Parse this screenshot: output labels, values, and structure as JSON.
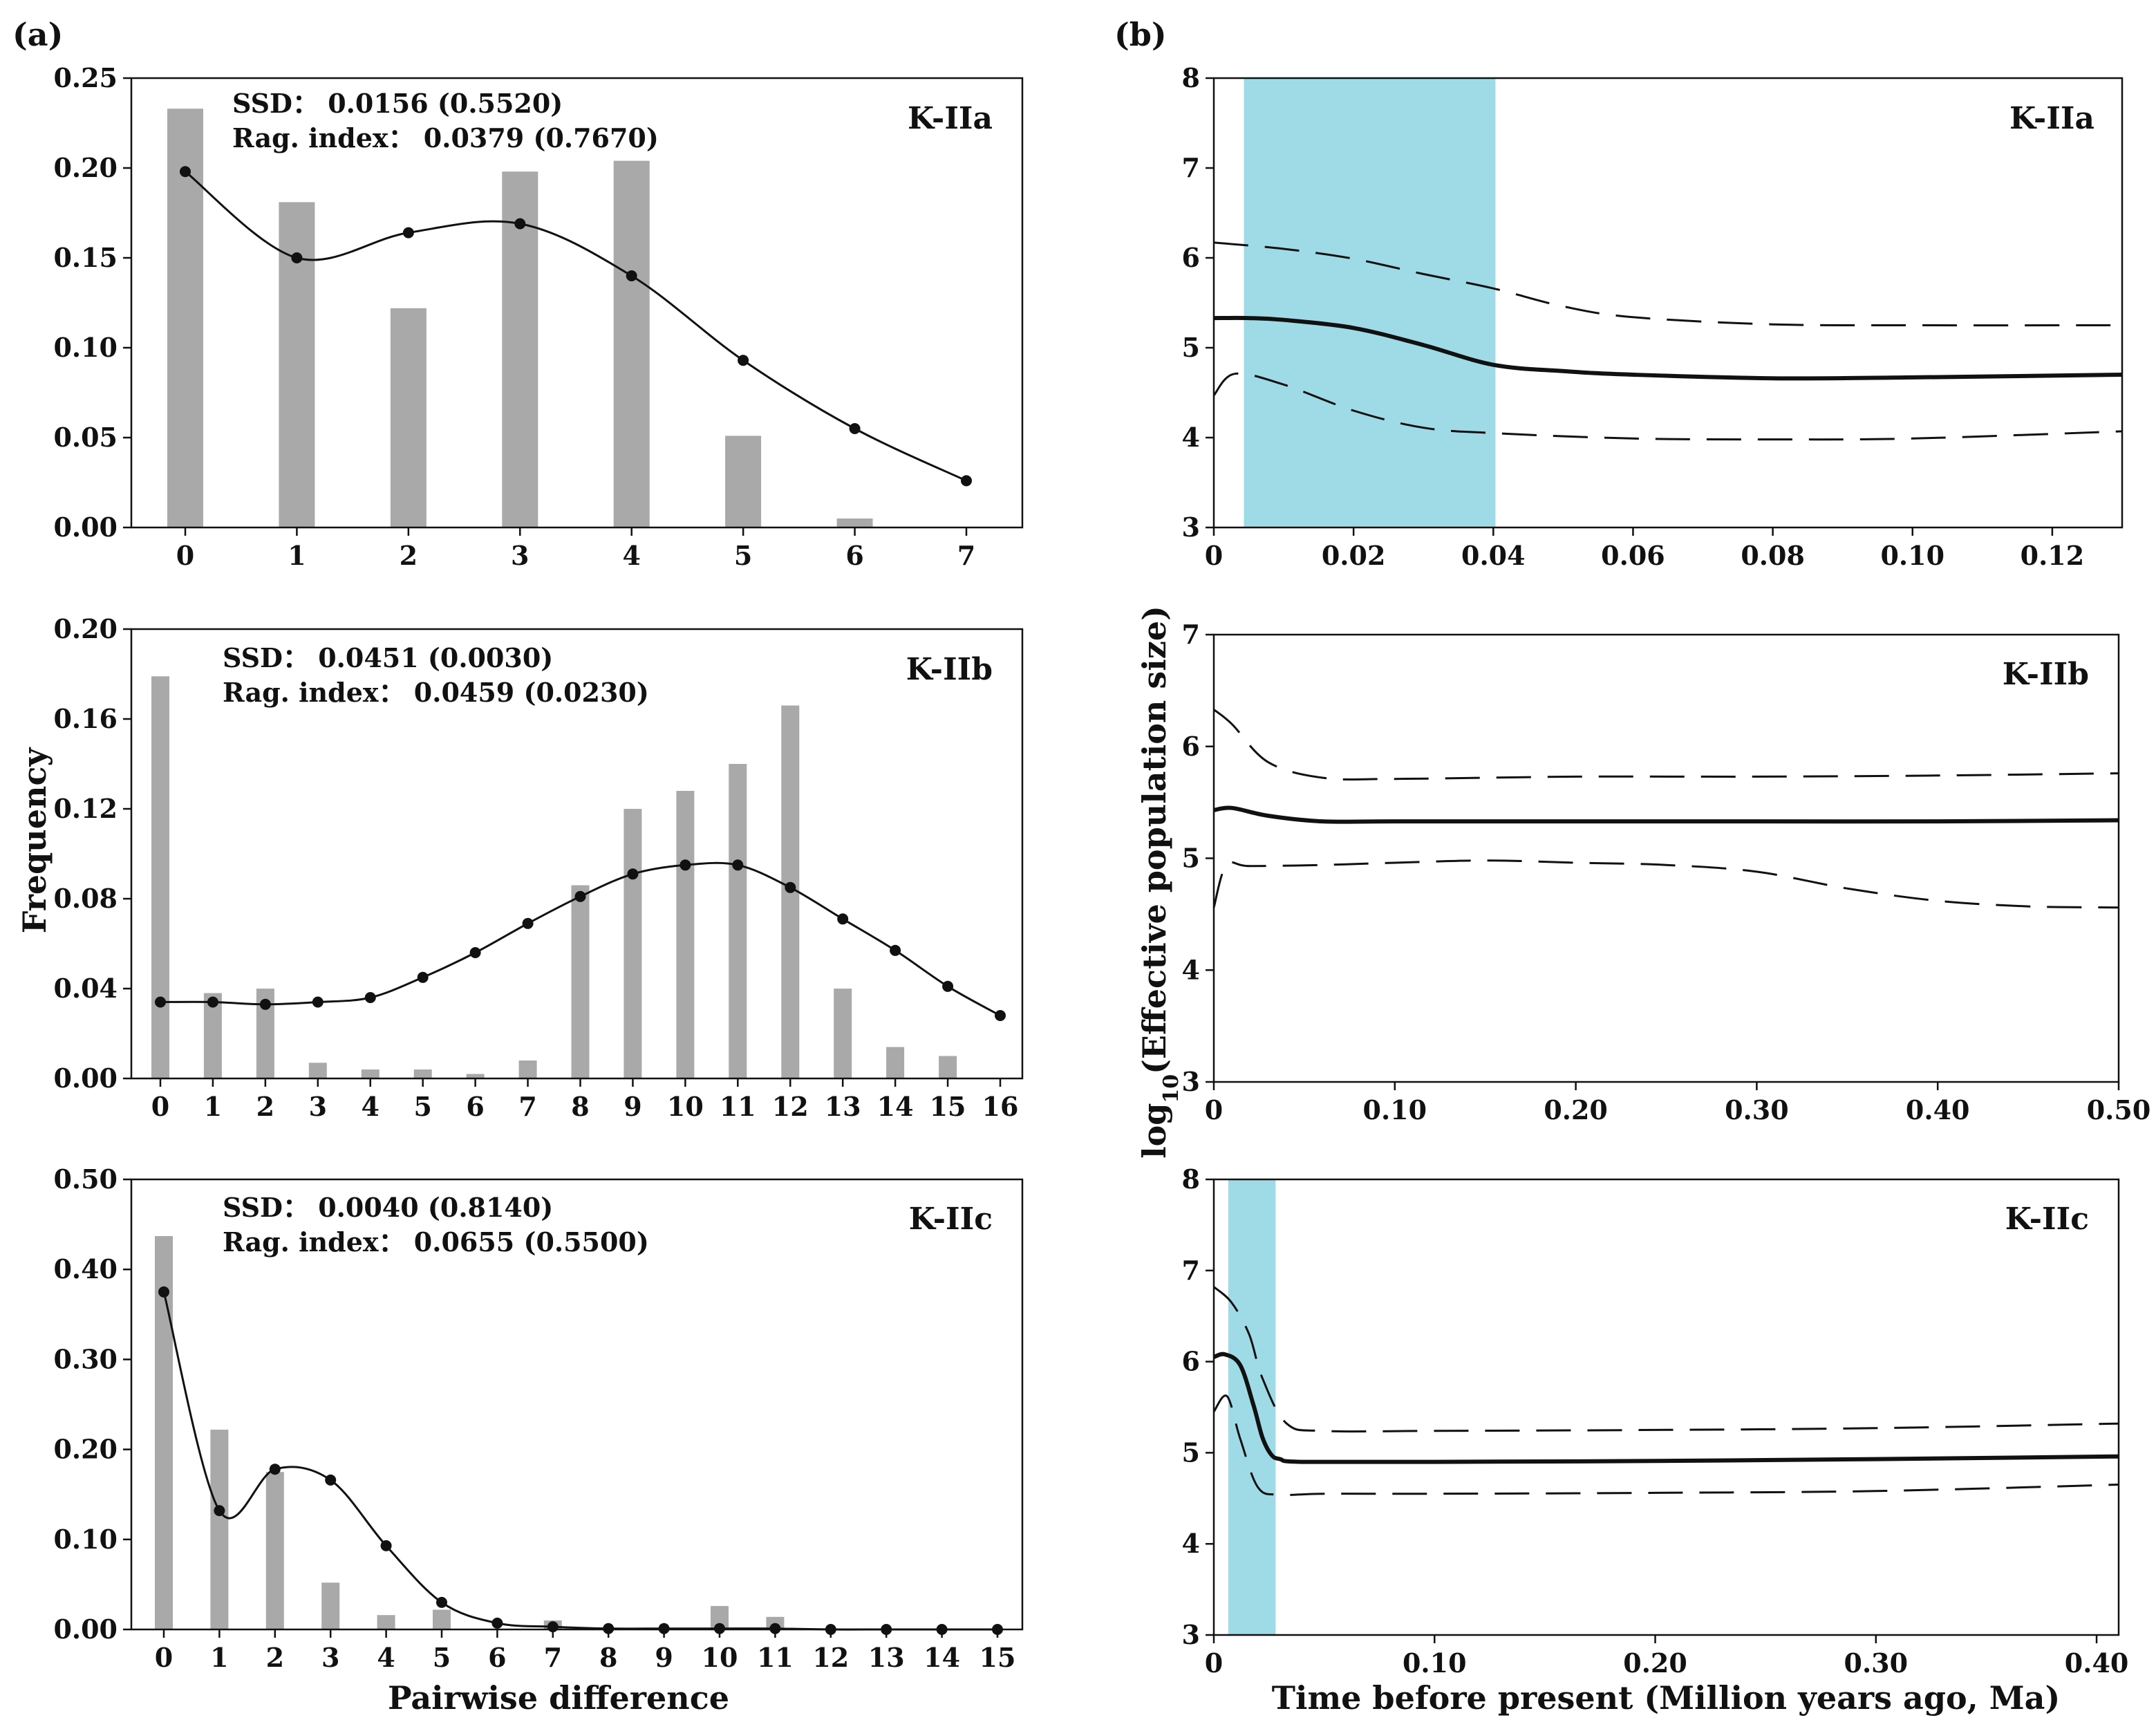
{
  "panel_labels": {
    "a": "(a)",
    "b": "(b)"
  },
  "axis_titles": {
    "mismatch_y": "Frequency",
    "mismatch_x": "Pairwise difference",
    "bsp_y_prefix": "log",
    "bsp_y_sub": "10",
    "bsp_y_suffix": "(Effective population size)",
    "bsp_x": "Time before present (Million years ago, Ma)"
  },
  "colors": {
    "bar": "#a9a9a9",
    "shade": "#9fdae7",
    "line": "#111111"
  },
  "chart_data": [
    {
      "id": "mismatch-K-IIa",
      "type": "bar+line",
      "title": "K-IIa",
      "stat_ssd": "SSD： 0.0156 (0.5520)",
      "stat_rag": "Rag. index： 0.0379 (0.7670)",
      "categories": [
        0,
        1,
        2,
        3,
        4,
        5,
        6,
        7
      ],
      "observed": [
        0.233,
        0.181,
        0.122,
        0.198,
        0.204,
        0.051,
        0.005,
        0
      ],
      "expected": [
        0.198,
        0.15,
        0.164,
        0.169,
        0.14,
        0.093,
        0.055,
        0.026
      ],
      "ylim": [
        0,
        0.25
      ],
      "yticks": [
        0,
        0.05,
        0.1,
        0.15,
        0.2,
        0.25
      ],
      "yticklabels": [
        "0.00",
        "0.05",
        "0.10",
        "0.15",
        "0.20",
        "0.25"
      ]
    },
    {
      "id": "mismatch-K-IIb",
      "type": "bar+line",
      "title": "K-IIb",
      "stat_ssd": "SSD： 0.0451 (0.0030)",
      "stat_rag": "Rag. index： 0.0459 (0.0230)",
      "categories": [
        0,
        1,
        2,
        3,
        4,
        5,
        6,
        7,
        8,
        9,
        10,
        11,
        12,
        13,
        14,
        15,
        16
      ],
      "observed": [
        0.179,
        0.038,
        0.04,
        0.007,
        0.004,
        0.004,
        0.002,
        0.008,
        0.086,
        0.12,
        0.128,
        0.14,
        0.166,
        0.04,
        0.014,
        0.01,
        0
      ],
      "expected": [
        0.034,
        0.034,
        0.033,
        0.034,
        0.036,
        0.045,
        0.056,
        0.069,
        0.081,
        0.091,
        0.095,
        0.095,
        0.085,
        0.071,
        0.057,
        0.041,
        0.028
      ],
      "ylim": [
        0,
        0.2
      ],
      "yticks": [
        0,
        0.04,
        0.08,
        0.12,
        0.16,
        0.2
      ],
      "yticklabels": [
        "0.00",
        "0.04",
        "0.08",
        "0.12",
        "0.16",
        "0.20"
      ]
    },
    {
      "id": "mismatch-K-IIc",
      "type": "bar+line",
      "title": "K-IIc",
      "stat_ssd": "SSD： 0.0040 (0.8140)",
      "stat_rag": "Rag. index： 0.0655 (0.5500)",
      "categories": [
        0,
        1,
        2,
        3,
        4,
        5,
        6,
        7,
        8,
        9,
        10,
        11,
        12,
        13,
        14,
        15
      ],
      "observed": [
        0.437,
        0.222,
        0.175,
        0.052,
        0.016,
        0.022,
        0,
        0.01,
        0,
        0,
        0.026,
        0.014,
        0,
        0,
        0,
        0
      ],
      "expected": [
        0.375,
        0.132,
        0.178,
        0.166,
        0.093,
        0.03,
        0.007,
        0.003,
        0.001,
        0.001,
        0.001,
        0.001,
        0,
        0,
        0,
        0
      ],
      "ylim": [
        0,
        0.5
      ],
      "yticks": [
        0,
        0.1,
        0.2,
        0.3,
        0.4,
        0.5
      ],
      "yticklabels": [
        "0.00",
        "0.10",
        "0.20",
        "0.30",
        "0.40",
        "0.50"
      ]
    },
    {
      "id": "bsp-K-IIa",
      "type": "line",
      "title": "K-IIa",
      "xlim": [
        0,
        0.13
      ],
      "ylim": [
        3,
        8
      ],
      "xticks": [
        0,
        0.02,
        0.04,
        0.06,
        0.08,
        0.1,
        0.12
      ],
      "xticklabels": [
        "0",
        "0.02",
        "0.04",
        "0.06",
        "0.08",
        "0.10",
        "0.12"
      ],
      "yticks": [
        3,
        4,
        5,
        6,
        7,
        8
      ],
      "yticklabels": [
        "3",
        "4",
        "5",
        "6",
        "7",
        "8"
      ],
      "shade": [
        0.0043,
        0.0403
      ],
      "median": {
        "x": [
          0,
          0.005,
          0.01,
          0.02,
          0.03,
          0.04,
          0.05,
          0.06,
          0.08,
          0.1,
          0.13
        ],
        "y": [
          5.33,
          5.33,
          5.31,
          5.22,
          5.03,
          4.81,
          4.74,
          4.7,
          4.66,
          4.67,
          4.7
        ]
      },
      "upper": {
        "x": [
          0,
          0.01,
          0.02,
          0.03,
          0.04,
          0.05,
          0.06,
          0.08,
          0.1,
          0.13
        ],
        "y": [
          6.17,
          6.1,
          5.99,
          5.82,
          5.66,
          5.46,
          5.34,
          5.26,
          5.25,
          5.25
        ]
      },
      "lower": {
        "x": [
          0,
          0.003,
          0.01,
          0.02,
          0.03,
          0.04,
          0.06,
          0.08,
          0.1,
          0.13
        ],
        "y": [
          4.47,
          4.71,
          4.59,
          4.3,
          4.11,
          4.05,
          3.99,
          3.98,
          3.99,
          4.07
        ]
      }
    },
    {
      "id": "bsp-K-IIb",
      "type": "line",
      "title": "K-IIb",
      "xlim": [
        0,
        0.5
      ],
      "ylim": [
        3,
        7
      ],
      "xticks": [
        0,
        0.1,
        0.2,
        0.3,
        0.4,
        0.5
      ],
      "xticklabels": [
        "0",
        "0.10",
        "0.20",
        "0.30",
        "0.40",
        "0.50"
      ],
      "yticks": [
        3,
        4,
        5,
        6,
        7
      ],
      "yticklabels": [
        "3",
        "4",
        "5",
        "6",
        "7"
      ],
      "shade": null,
      "median": {
        "x": [
          0,
          0.01,
          0.03,
          0.06,
          0.1,
          0.2,
          0.3,
          0.4,
          0.5
        ],
        "y": [
          5.43,
          5.45,
          5.38,
          5.33,
          5.33,
          5.33,
          5.33,
          5.33,
          5.34
        ]
      },
      "upper": {
        "x": [
          0,
          0.01,
          0.03,
          0.06,
          0.1,
          0.2,
          0.3,
          0.4,
          0.5
        ],
        "y": [
          6.33,
          6.2,
          5.86,
          5.72,
          5.71,
          5.73,
          5.73,
          5.74,
          5.76
        ]
      },
      "lower": {
        "x": [
          0,
          0.007,
          0.02,
          0.06,
          0.1,
          0.15,
          0.2,
          0.25,
          0.3,
          0.35,
          0.4,
          0.45,
          0.5
        ],
        "y": [
          4.56,
          4.94,
          4.93,
          4.94,
          4.96,
          4.98,
          4.96,
          4.94,
          4.88,
          4.73,
          4.62,
          4.57,
          4.56
        ]
      }
    },
    {
      "id": "bsp-K-IIc",
      "type": "line",
      "title": "K-IIc",
      "xlim": [
        0,
        0.41
      ],
      "ylim": [
        3,
        8
      ],
      "xticks": [
        0,
        0.1,
        0.2,
        0.3,
        0.4
      ],
      "xticklabels": [
        "0",
        "0.10",
        "0.20",
        "0.30",
        "0.40"
      ],
      "yticks": [
        3,
        4,
        5,
        6,
        7,
        8
      ],
      "yticklabels": [
        "3",
        "4",
        "5",
        "6",
        "7",
        "8"
      ],
      "shade": [
        0.0065,
        0.028
      ],
      "median": {
        "x": [
          0,
          0.005,
          0.012,
          0.018,
          0.022,
          0.026,
          0.03,
          0.04,
          0.1,
          0.2,
          0.3,
          0.41
        ],
        "y": [
          6.05,
          6.08,
          5.96,
          5.52,
          5.17,
          4.98,
          4.93,
          4.9,
          4.9,
          4.91,
          4.93,
          4.96
        ]
      },
      "upper": {
        "x": [
          0,
          0.008,
          0.016,
          0.022,
          0.033,
          0.05,
          0.1,
          0.2,
          0.3,
          0.41
        ],
        "y": [
          6.82,
          6.65,
          6.3,
          5.82,
          5.32,
          5.24,
          5.24,
          5.25,
          5.27,
          5.32
        ]
      },
      "lower": {
        "x": [
          0,
          0.006,
          0.012,
          0.02,
          0.03,
          0.05,
          0.1,
          0.2,
          0.3,
          0.41
        ],
        "y": [
          5.45,
          5.62,
          5.15,
          4.62,
          4.54,
          4.55,
          4.55,
          4.56,
          4.58,
          4.65
        ]
      }
    }
  ]
}
